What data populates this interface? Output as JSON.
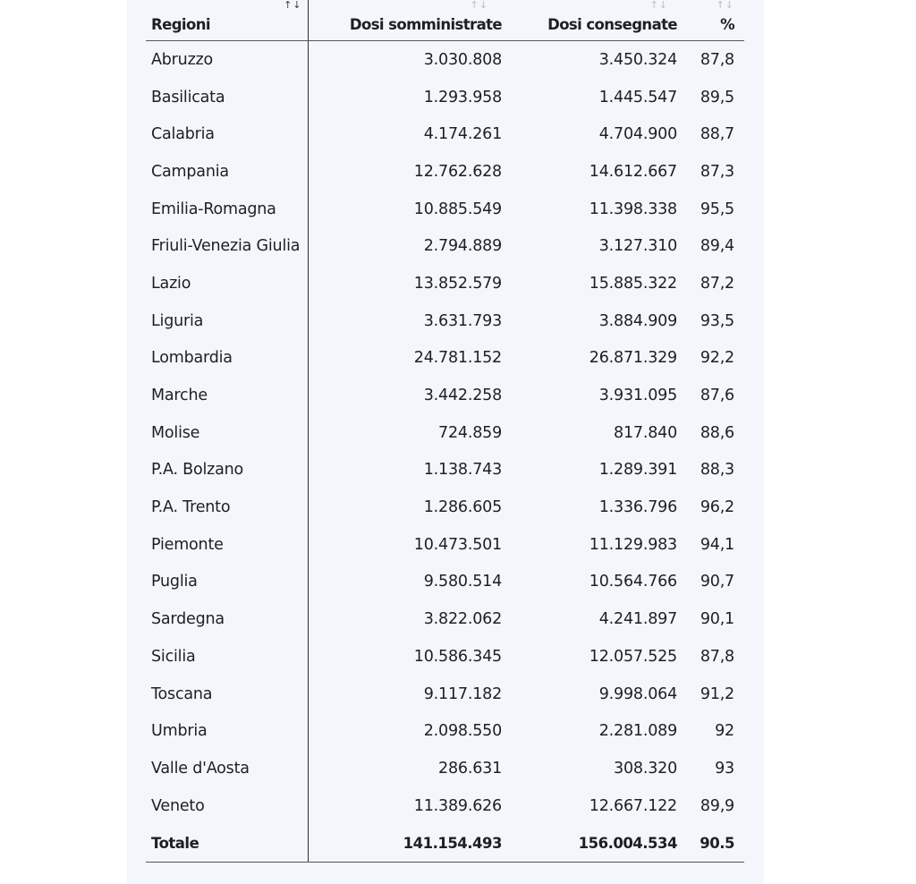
{
  "headers": {
    "regioni": "Regioni",
    "somministrate": "Dosi somministrate",
    "consegnate": "Dosi consegnate",
    "pct": "%"
  },
  "sort_icons": {
    "regioni": "↑↓",
    "somministrate": "↑↓",
    "consegnate": "↑↓",
    "pct": "↑↓"
  },
  "rows": [
    {
      "region": "Abruzzo",
      "somministrate": "3.030.808",
      "consegnate": "3.450.324",
      "pct": "87,8"
    },
    {
      "region": "Basilicata",
      "somministrate": "1.293.958",
      "consegnate": "1.445.547",
      "pct": "89,5"
    },
    {
      "region": "Calabria",
      "somministrate": "4.174.261",
      "consegnate": "4.704.900",
      "pct": "88,7"
    },
    {
      "region": "Campania",
      "somministrate": "12.762.628",
      "consegnate": "14.612.667",
      "pct": "87,3"
    },
    {
      "region": "Emilia-Romagna",
      "somministrate": "10.885.549",
      "consegnate": "11.398.338",
      "pct": "95,5"
    },
    {
      "region": "Friuli-Venezia Giulia",
      "somministrate": "2.794.889",
      "consegnate": "3.127.310",
      "pct": "89,4"
    },
    {
      "region": "Lazio",
      "somministrate": "13.852.579",
      "consegnate": "15.885.322",
      "pct": "87,2"
    },
    {
      "region": "Liguria",
      "somministrate": "3.631.793",
      "consegnate": "3.884.909",
      "pct": "93,5"
    },
    {
      "region": "Lombardia",
      "somministrate": "24.781.152",
      "consegnate": "26.871.329",
      "pct": "92,2"
    },
    {
      "region": "Marche",
      "somministrate": "3.442.258",
      "consegnate": "3.931.095",
      "pct": "87,6"
    },
    {
      "region": "Molise",
      "somministrate": "724.859",
      "consegnate": "817.840",
      "pct": "88,6"
    },
    {
      "region": "P.A. Bolzano",
      "somministrate": "1.138.743",
      "consegnate": "1.289.391",
      "pct": "88,3"
    },
    {
      "region": "P.A. Trento",
      "somministrate": "1.286.605",
      "consegnate": "1.336.796",
      "pct": "96,2"
    },
    {
      "region": "Piemonte",
      "somministrate": "10.473.501",
      "consegnate": "11.129.983",
      "pct": "94,1"
    },
    {
      "region": "Puglia",
      "somministrate": "9.580.514",
      "consegnate": "10.564.766",
      "pct": "90,7"
    },
    {
      "region": "Sardegna",
      "somministrate": "3.822.062",
      "consegnate": "4.241.897",
      "pct": "90,1"
    },
    {
      "region": "Sicilia",
      "somministrate": "10.586.345",
      "consegnate": "12.057.525",
      "pct": "87,8"
    },
    {
      "region": "Toscana",
      "somministrate": "9.117.182",
      "consegnate": "9.998.064",
      "pct": "91,2"
    },
    {
      "region": "Umbria",
      "somministrate": "2.098.550",
      "consegnate": "2.281.089",
      "pct": "92"
    },
    {
      "region": "Valle d'Aosta",
      "somministrate": "286.631",
      "consegnate": "308.320",
      "pct": "93"
    },
    {
      "region": "Veneto",
      "somministrate": "11.389.626",
      "consegnate": "12.667.122",
      "pct": "89,9"
    }
  ],
  "total": {
    "label": "Totale",
    "somministrate": "141.154.493",
    "consegnate": "156.004.534",
    "pct": "90.5"
  }
}
